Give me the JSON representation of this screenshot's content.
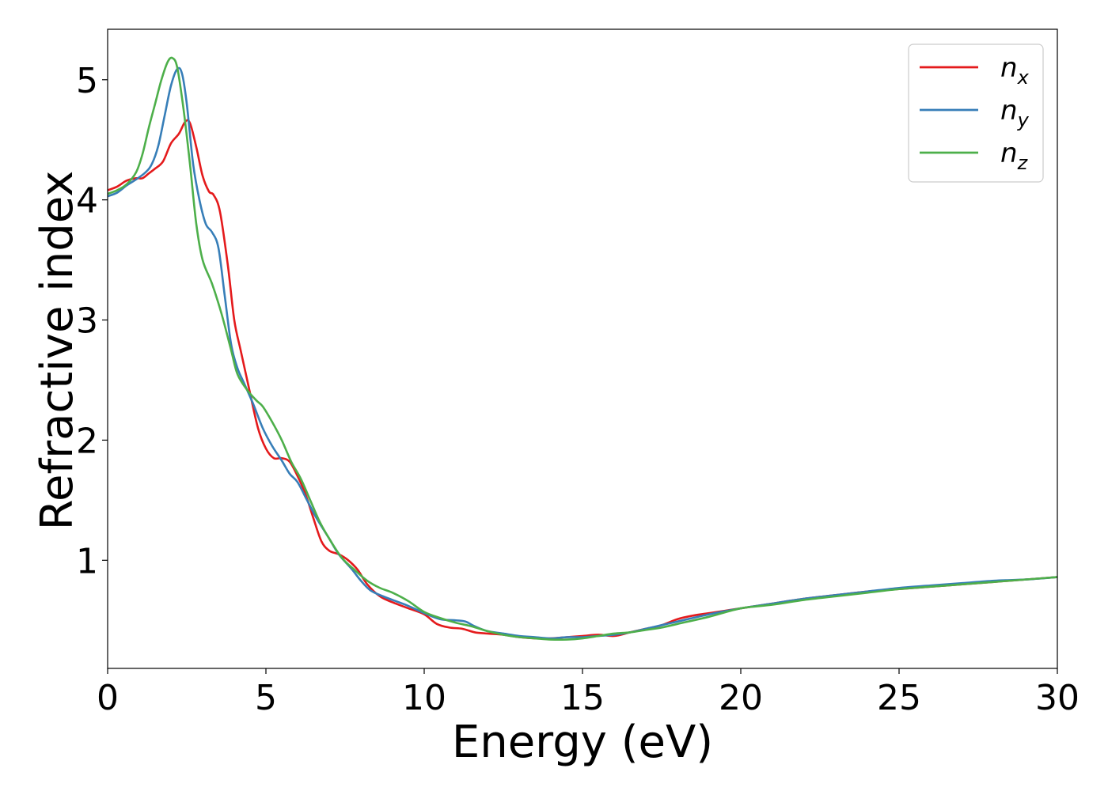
{
  "chart_data": {
    "type": "line",
    "xlabel": "Energy (eV)",
    "ylabel": "Refractive index",
    "xlim": [
      0,
      30
    ],
    "ylim": [
      0.1,
      5.42
    ],
    "xticks": [
      0,
      5,
      10,
      15,
      20,
      25,
      30
    ],
    "yticks": [
      1,
      2,
      3,
      4,
      5
    ],
    "grid": false,
    "legend_position": "top-right",
    "series": [
      {
        "name": "n_x",
        "legend_base": "n",
        "legend_sub": "x",
        "color": "#e41a1c",
        "points": [
          [
            0,
            4.08
          ],
          [
            0.3,
            4.11
          ],
          [
            0.6,
            4.16
          ],
          [
            0.9,
            4.18
          ],
          [
            1.1,
            4.18
          ],
          [
            1.3,
            4.22
          ],
          [
            1.5,
            4.26
          ],
          [
            1.75,
            4.32
          ],
          [
            2.0,
            4.47
          ],
          [
            2.25,
            4.55
          ],
          [
            2.45,
            4.65
          ],
          [
            2.6,
            4.64
          ],
          [
            2.8,
            4.44
          ],
          [
            3.0,
            4.2
          ],
          [
            3.2,
            4.07
          ],
          [
            3.35,
            4.04
          ],
          [
            3.55,
            3.9
          ],
          [
            3.8,
            3.45
          ],
          [
            4.0,
            3.0
          ],
          [
            4.2,
            2.75
          ],
          [
            4.45,
            2.45
          ],
          [
            4.75,
            2.1
          ],
          [
            5.0,
            1.93
          ],
          [
            5.25,
            1.85
          ],
          [
            5.5,
            1.85
          ],
          [
            5.75,
            1.82
          ],
          [
            6.0,
            1.7
          ],
          [
            6.25,
            1.55
          ],
          [
            6.5,
            1.35
          ],
          [
            6.75,
            1.16
          ],
          [
            7.0,
            1.08
          ],
          [
            7.3,
            1.05
          ],
          [
            7.6,
            1.0
          ],
          [
            7.9,
            0.92
          ],
          [
            8.2,
            0.8
          ],
          [
            8.6,
            0.7
          ],
          [
            9.0,
            0.65
          ],
          [
            9.5,
            0.6
          ],
          [
            10.0,
            0.55
          ],
          [
            10.4,
            0.47
          ],
          [
            10.8,
            0.44
          ],
          [
            11.2,
            0.43
          ],
          [
            11.6,
            0.4
          ],
          [
            12.0,
            0.39
          ],
          [
            12.5,
            0.38
          ],
          [
            13.0,
            0.36
          ],
          [
            13.5,
            0.35
          ],
          [
            14.0,
            0.35
          ],
          [
            14.5,
            0.36
          ],
          [
            15.0,
            0.37
          ],
          [
            15.5,
            0.38
          ],
          [
            16.0,
            0.37
          ],
          [
            16.5,
            0.4
          ],
          [
            17.0,
            0.43
          ],
          [
            17.5,
            0.46
          ],
          [
            18.0,
            0.51
          ],
          [
            18.5,
            0.54
          ],
          [
            19.0,
            0.56
          ],
          [
            19.5,
            0.58
          ],
          [
            20.0,
            0.6
          ],
          [
            21.0,
            0.64
          ],
          [
            22.0,
            0.68
          ],
          [
            23.0,
            0.71
          ],
          [
            24.0,
            0.74
          ],
          [
            25.0,
            0.76
          ],
          [
            26.0,
            0.78
          ],
          [
            27.0,
            0.8
          ],
          [
            28.0,
            0.82
          ],
          [
            29.0,
            0.84
          ],
          [
            30.0,
            0.86
          ]
        ]
      },
      {
        "name": "n_y",
        "legend_base": "n",
        "legend_sub": "y",
        "color": "#377eb8",
        "points": [
          [
            0,
            4.03
          ],
          [
            0.3,
            4.06
          ],
          [
            0.6,
            4.12
          ],
          [
            0.9,
            4.17
          ],
          [
            1.2,
            4.23
          ],
          [
            1.4,
            4.3
          ],
          [
            1.6,
            4.45
          ],
          [
            1.8,
            4.7
          ],
          [
            2.0,
            4.95
          ],
          [
            2.2,
            5.09
          ],
          [
            2.35,
            5.05
          ],
          [
            2.5,
            4.8
          ],
          [
            2.7,
            4.3
          ],
          [
            2.9,
            4.0
          ],
          [
            3.1,
            3.8
          ],
          [
            3.3,
            3.73
          ],
          [
            3.5,
            3.6
          ],
          [
            3.7,
            3.2
          ],
          [
            3.9,
            2.8
          ],
          [
            4.1,
            2.6
          ],
          [
            4.3,
            2.48
          ],
          [
            4.6,
            2.3
          ],
          [
            4.9,
            2.1
          ],
          [
            5.2,
            1.95
          ],
          [
            5.5,
            1.83
          ],
          [
            5.75,
            1.72
          ],
          [
            6.0,
            1.65
          ],
          [
            6.3,
            1.5
          ],
          [
            6.6,
            1.35
          ],
          [
            7.0,
            1.18
          ],
          [
            7.3,
            1.05
          ],
          [
            7.7,
            0.93
          ],
          [
            8.0,
            0.83
          ],
          [
            8.3,
            0.75
          ],
          [
            8.7,
            0.7
          ],
          [
            9.0,
            0.67
          ],
          [
            9.5,
            0.62
          ],
          [
            10.0,
            0.56
          ],
          [
            10.5,
            0.51
          ],
          [
            11.0,
            0.5
          ],
          [
            11.3,
            0.49
          ],
          [
            11.6,
            0.45
          ],
          [
            12.0,
            0.41
          ],
          [
            12.5,
            0.39
          ],
          [
            13.0,
            0.37
          ],
          [
            13.5,
            0.36
          ],
          [
            14.0,
            0.35
          ],
          [
            14.5,
            0.36
          ],
          [
            15.0,
            0.36
          ],
          [
            15.5,
            0.37
          ],
          [
            16.0,
            0.38
          ],
          [
            16.5,
            0.4
          ],
          [
            17.0,
            0.43
          ],
          [
            17.5,
            0.46
          ],
          [
            18.0,
            0.49
          ],
          [
            19.0,
            0.55
          ],
          [
            20.0,
            0.6
          ],
          [
            21.0,
            0.64
          ],
          [
            22.0,
            0.68
          ],
          [
            23.0,
            0.71
          ],
          [
            24.0,
            0.74
          ],
          [
            25.0,
            0.77
          ],
          [
            26.0,
            0.79
          ],
          [
            27.0,
            0.81
          ],
          [
            28.0,
            0.83
          ],
          [
            29.0,
            0.84
          ],
          [
            30.0,
            0.86
          ]
        ]
      },
      {
        "name": "n_z",
        "legend_base": "n",
        "legend_sub": "z",
        "color": "#4daf4a",
        "points": [
          [
            0,
            4.05
          ],
          [
            0.3,
            4.08
          ],
          [
            0.6,
            4.13
          ],
          [
            0.9,
            4.23
          ],
          [
            1.1,
            4.38
          ],
          [
            1.3,
            4.6
          ],
          [
            1.5,
            4.8
          ],
          [
            1.7,
            5.0
          ],
          [
            1.9,
            5.15
          ],
          [
            2.05,
            5.18
          ],
          [
            2.2,
            5.1
          ],
          [
            2.4,
            4.75
          ],
          [
            2.6,
            4.3
          ],
          [
            2.8,
            3.8
          ],
          [
            3.0,
            3.5
          ],
          [
            3.3,
            3.3
          ],
          [
            3.6,
            3.05
          ],
          [
            3.9,
            2.75
          ],
          [
            4.1,
            2.55
          ],
          [
            4.4,
            2.42
          ],
          [
            4.7,
            2.33
          ],
          [
            4.9,
            2.28
          ],
          [
            5.2,
            2.15
          ],
          [
            5.5,
            2.0
          ],
          [
            5.8,
            1.82
          ],
          [
            6.1,
            1.68
          ],
          [
            6.4,
            1.5
          ],
          [
            6.7,
            1.32
          ],
          [
            7.0,
            1.18
          ],
          [
            7.4,
            1.02
          ],
          [
            7.8,
            0.92
          ],
          [
            8.2,
            0.83
          ],
          [
            8.6,
            0.77
          ],
          [
            9.0,
            0.73
          ],
          [
            9.5,
            0.66
          ],
          [
            10.0,
            0.57
          ],
          [
            10.5,
            0.52
          ],
          [
            11.0,
            0.48
          ],
          [
            11.5,
            0.45
          ],
          [
            12.0,
            0.41
          ],
          [
            12.5,
            0.38
          ],
          [
            13.0,
            0.36
          ],
          [
            13.5,
            0.35
          ],
          [
            14.0,
            0.34
          ],
          [
            14.5,
            0.34
          ],
          [
            15.0,
            0.35
          ],
          [
            15.5,
            0.37
          ],
          [
            16.0,
            0.39
          ],
          [
            16.5,
            0.4
          ],
          [
            17.0,
            0.42
          ],
          [
            17.5,
            0.44
          ],
          [
            18.0,
            0.47
          ],
          [
            19.0,
            0.53
          ],
          [
            20.0,
            0.6
          ],
          [
            21.0,
            0.63
          ],
          [
            22.0,
            0.67
          ],
          [
            23.0,
            0.7
          ],
          [
            24.0,
            0.73
          ],
          [
            25.0,
            0.76
          ],
          [
            26.0,
            0.78
          ],
          [
            27.0,
            0.8
          ],
          [
            28.0,
            0.82
          ],
          [
            29.0,
            0.84
          ],
          [
            30.0,
            0.86
          ]
        ]
      }
    ]
  }
}
